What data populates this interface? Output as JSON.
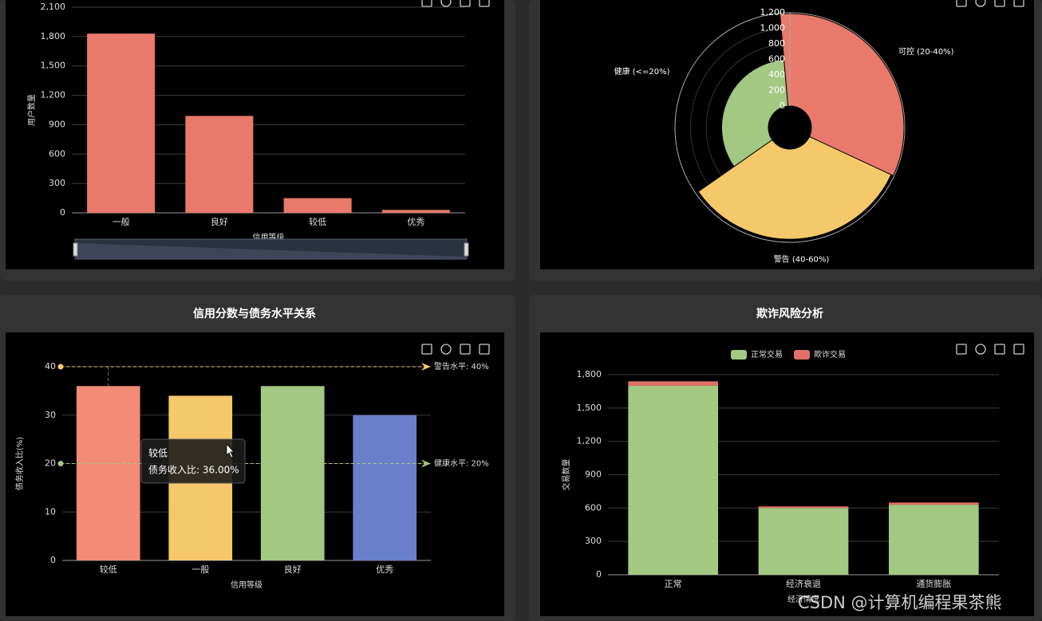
{
  "chart_data": [
    {
      "type": "bar",
      "categories": [
        "一般",
        "良好",
        "较低",
        "优秀"
      ],
      "values": [
        1830,
        990,
        150,
        30
      ],
      "color": "#e8796b",
      "ylabel": "用户数量",
      "xlabel": "信用等级",
      "ylim": [
        0,
        2100
      ],
      "yticks": [
        0,
        300,
        600,
        900,
        {
          "value": 1200,
          "label": "1,200"
        },
        {
          "value": 1500,
          "label": "1,500"
        },
        {
          "value": 1800,
          "label": "1,800"
        },
        {
          "value": 2100,
          "label": "2,100"
        }
      ],
      "grid": true
    },
    {
      "type": "rose",
      "categories": [
        "健康 (<=20%)",
        "可控 (20-40%)",
        "警告 (40-60%)"
      ],
      "values": [
        600,
        1190,
        1160
      ],
      "colors": [
        "#a3c882",
        "#e8796b",
        "#f5c96a"
      ],
      "rlim": [
        0,
        1200
      ],
      "rticks": [
        0,
        200,
        400,
        600,
        800,
        {
          "value": 1000,
          "label": "1,000"
        },
        {
          "value": 1200,
          "label": "1,200"
        }
      ]
    },
    {
      "type": "bar",
      "title": "信用分数与债务水平关系",
      "categories": [
        "较低",
        "一般",
        "良好",
        "优秀"
      ],
      "values": [
        36,
        34,
        36,
        30
      ],
      "colors": [
        "#f28b78",
        "#f5c96a",
        "#a3c882",
        "#6a7fcc"
      ],
      "ylabel": "债务收入比(%)",
      "xlabel": "信用等级",
      "ylim": [
        0,
        40
      ],
      "yticks": [
        0,
        10,
        20,
        30,
        40
      ],
      "grid": true,
      "mark_lines": [
        {
          "value": 40,
          "label": "警告水平: 40%",
          "color": "#f5c96a"
        },
        {
          "value": 20,
          "label": "健康水平: 20%",
          "color": "#a3c882"
        }
      ],
      "tooltip": {
        "title": "较低",
        "text": "债务收入比: 36.00%"
      }
    },
    {
      "type": "stacked_bar",
      "title": "欺诈风险分析",
      "categories": [
        "正常",
        "经济衰退",
        "通货膨胀"
      ],
      "series": [
        {
          "name": "正常交易",
          "color": "#a3c882",
          "values": [
            1700,
            600,
            630
          ]
        },
        {
          "name": "欺诈交易",
          "color": "#e0716a",
          "values": [
            40,
            15,
            20
          ]
        }
      ],
      "ylabel": "交易数量",
      "xlabel": "经济情况",
      "ylim": [
        0,
        1800
      ],
      "yticks": [
        0,
        300,
        600,
        900,
        {
          "value": 1200,
          "label": "1,200"
        },
        {
          "value": 1500,
          "label": "1,500"
        },
        {
          "value": 1800,
          "label": "1,800"
        }
      ],
      "grid": true
    }
  ],
  "watermark": "CSDN @计算机编程果茶熊"
}
